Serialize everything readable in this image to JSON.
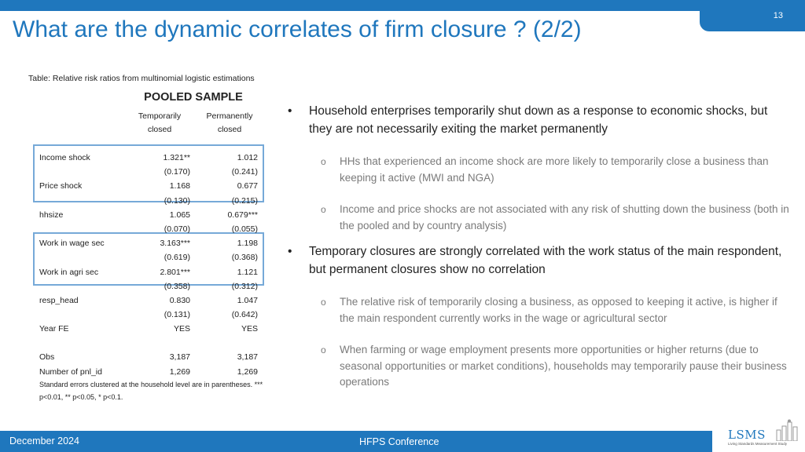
{
  "slide": {
    "page_number": "13",
    "title": "What are the dynamic correlates of firm closure ? (2/2)"
  },
  "table": {
    "caption": "Table: Relative risk ratios from multinomial logistic estimations",
    "sample_header": "POOLED SAMPLE",
    "columns": [
      {
        "line1": "Temporarily",
        "line2": "closed"
      },
      {
        "line1": "Permanently",
        "line2": "closed"
      }
    ],
    "rows": [
      {
        "label": "Income shock",
        "v1": "1.321**",
        "v2": "1.012"
      },
      {
        "label": "",
        "v1": "(0.170)",
        "v2": "(0.241)"
      },
      {
        "label": "Price shock",
        "v1": "1.168",
        "v2": "0.677"
      },
      {
        "label": "",
        "v1": "(0.130)",
        "v2": "(0.215)"
      },
      {
        "label": "hhsize",
        "v1": "1.065",
        "v2": "0.679***"
      },
      {
        "label": "",
        "v1": "(0.070)",
        "v2": "(0.055)"
      },
      {
        "label": "Work in wage sec",
        "v1": "3.163***",
        "v2": "1.198"
      },
      {
        "label": "",
        "v1": "(0.619)",
        "v2": "(0.368)"
      },
      {
        "label": "Work in agri sec",
        "v1": "2.801***",
        "v2": "1.121"
      },
      {
        "label": "",
        "v1": "(0.358)",
        "v2": "(0.312)"
      },
      {
        "label": "resp_head",
        "v1": "0.830",
        "v2": "1.047"
      },
      {
        "label": "",
        "v1": "(0.131)",
        "v2": "(0.642)"
      },
      {
        "label": "Year FE",
        "v1": "YES",
        "v2": "YES"
      },
      {
        "label": "Obs",
        "v1": "3,187",
        "v2": "3,187"
      },
      {
        "label": "Number of pnl_id",
        "v1": "1,269",
        "v2": "1,269"
      }
    ],
    "footnote": "Standard errors clustered at the household level are in parentheses. *** p<0.01, ** p<0.05, * p<0.1."
  },
  "bullets": {
    "main1": "Household enterprises temporarily shut down as a response to economic shocks, but they are not necessarily exiting the market permanently",
    "sub1a": "HHs that experienced an income shock are more likely to temporarily close a business than keeping it active (MWI and NGA)",
    "sub1b": "Income and price shocks are not associated with any risk of shutting down the business (both in the pooled and by country analysis)",
    "main2": "Temporary closures are strongly correlated with the work status of the main respondent, but permanent closures show no correlation",
    "sub2a": "The relative risk of temporarily closing a business, as opposed to keeping it active, is higher if the main respondent currently works in the wage or agricultural sector",
    "sub2b": "When farming or wage employment presents more opportunities or higher returns (due to seasonal opportunities or market conditions), households may temporarily pause their business operations"
  },
  "footer": {
    "date": "December 2024",
    "event": "HFPS Conference",
    "logo_text": "LSMS",
    "logo_subtitle": "Living Standards Measurement Study"
  },
  "colors": {
    "accent": "#1f77bd",
    "highlight_box": "#76a9d8",
    "sub_bullet_text": "#7a7a7a"
  }
}
